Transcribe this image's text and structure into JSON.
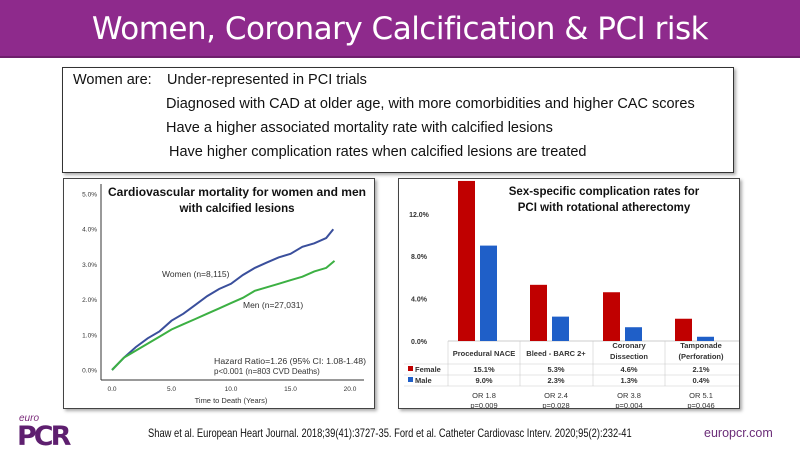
{
  "slide": {
    "title": "Women, Coronary Calcification & PCI risk",
    "intro_label": "Women are:",
    "points": [
      "Under-represented in PCI trials",
      "Diagnosed with CAD at older age, with more comorbidities and higher CAC scores",
      "Have a higher associated mortality rate with calcified lesions",
      "Have higher complication rates when calcified lesions are treated"
    ],
    "citation": "Shaw et al. European Heart Journal. 2018;39(41):3727-35.  Ford et al. Catheter Cardiovasc Interv. 2020;95(2):232-41",
    "logo_top": "euro",
    "logo_main": "PCR",
    "website": "europcr.com",
    "accent_color": "#8e2a8c"
  },
  "chart_data": [
    {
      "type": "line",
      "title": "Cardiovascular mortality for women and men with calcified lesions",
      "xlabel": "Time to Death (Years)",
      "ylabel": "",
      "xlim": [
        0,
        20
      ],
      "ylim": [
        0,
        5
      ],
      "xticks": [
        "0.0",
        "5.0",
        "10.0",
        "15.0",
        "20.0"
      ],
      "yticks": [
        "0.0%",
        "1.0%",
        "2.0%",
        "3.0%",
        "4.0%",
        "5.0%"
      ],
      "series": [
        {
          "name": "Women (n=8,115)",
          "color": "#3a4f9c",
          "x": [
            0,
            1,
            2,
            3,
            4,
            5,
            6,
            7,
            8,
            9,
            10,
            11,
            12,
            13,
            14,
            15,
            16,
            17,
            18,
            18.6
          ],
          "y": [
            0,
            0.35,
            0.65,
            0.9,
            1.1,
            1.4,
            1.6,
            1.85,
            2.1,
            2.3,
            2.45,
            2.7,
            2.9,
            3.05,
            3.2,
            3.3,
            3.5,
            3.6,
            3.75,
            4.0
          ]
        },
        {
          "name": "Men (n=27,031)",
          "color": "#3cb043",
          "x": [
            0,
            1,
            2,
            3,
            4,
            5,
            6,
            7,
            8,
            9,
            10,
            11,
            12,
            13,
            14,
            15,
            16,
            17,
            18,
            18.7
          ],
          "y": [
            0,
            0.35,
            0.55,
            0.75,
            0.95,
            1.15,
            1.3,
            1.45,
            1.6,
            1.75,
            1.9,
            2.05,
            2.25,
            2.35,
            2.45,
            2.55,
            2.65,
            2.8,
            2.9,
            3.1
          ]
        }
      ],
      "annotation": [
        "Hazard Ratio=1.26 (95% CI: 1.08-1.48)",
        "p<0.001 (n=803 CVD Deaths)"
      ],
      "grid": false
    },
    {
      "type": "bar",
      "title": "Sex-specific complication rates for PCI with rotational atherectomy",
      "categories": [
        "Procedural NACE",
        "Bleed - BARC 2+",
        "Coronary Dissection",
        "Tamponade (Perforation)"
      ],
      "ylim": [
        0,
        15.1
      ],
      "yticks": [
        "0.0%",
        "4.0%",
        "8.0%",
        "12.0%"
      ],
      "series": [
        {
          "name": "Female",
          "color": "#c00000",
          "values": [
            15.1,
            5.3,
            4.6,
            2.1
          ],
          "labels": [
            "15.1%",
            "5.3%",
            "4.6%",
            "2.1%"
          ]
        },
        {
          "name": "Male",
          "color": "#1f5fc8",
          "values": [
            9.0,
            2.3,
            1.3,
            0.4
          ],
          "labels": [
            "9.0%",
            "2.3%",
            "1.3%",
            "0.4%"
          ]
        }
      ],
      "odds_ratios": [
        "OR 1.8",
        "OR 2.4",
        "OR 3.8",
        "OR 5.1"
      ],
      "p_values": [
        "p=0.009",
        "p=0.028",
        "p=0.004",
        "p=0.046"
      ],
      "grid": false
    }
  ]
}
